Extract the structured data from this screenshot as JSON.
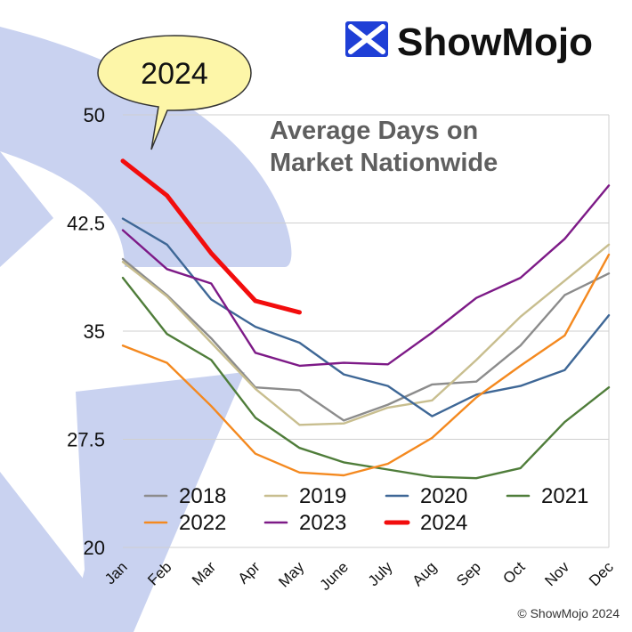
{
  "brand": {
    "name": "ShowMojo",
    "copyright": "© ShowMojo 2024"
  },
  "callout": {
    "text": "2024"
  },
  "colors": {
    "decor": "#c9d2f0",
    "grid": "#cfcfcf",
    "callout_fill": "#fdf6a8",
    "logo_blue": "#1f3fd6"
  },
  "chart_data": {
    "type": "line",
    "title": "Average Days on Market Nationwide",
    "title_lines": [
      "Average Days on",
      "Market Nationwide"
    ],
    "categories": [
      "Jan",
      "Feb",
      "Mar",
      "Apr",
      "May",
      "June",
      "July",
      "Aug",
      "Sep",
      "Oct",
      "Nov",
      "Dec"
    ],
    "ylim": [
      20,
      50
    ],
    "yticks": [
      20,
      27.5,
      35,
      42.5,
      50
    ],
    "ytick_labels": [
      "20",
      "27.5",
      "35",
      "42.5",
      "50"
    ],
    "grid": true,
    "legend_position": "bottom-inside",
    "series": [
      {
        "name": "2018",
        "color": "#8c8c8c",
        "values": [
          40.0,
          37.5,
          34.5,
          31.1,
          30.9,
          28.8,
          29.9,
          31.3,
          31.5,
          34.0,
          37.5,
          39.0
        ]
      },
      {
        "name": "2019",
        "color": "#c8be8f",
        "values": [
          39.8,
          37.4,
          34.2,
          31.0,
          28.5,
          28.6,
          29.7,
          30.2,
          33.0,
          36.0,
          38.5,
          41.0
        ]
      },
      {
        "name": "2020",
        "color": "#3e6796",
        "values": [
          42.8,
          41.0,
          37.2,
          35.3,
          34.2,
          32.0,
          31.2,
          29.1,
          30.6,
          31.2,
          32.3,
          36.1
        ]
      },
      {
        "name": "2021",
        "color": "#4f7d3a",
        "values": [
          38.7,
          34.8,
          33.0,
          29.0,
          26.9,
          25.9,
          25.4,
          24.9,
          24.8,
          25.5,
          28.7,
          31.1
        ]
      },
      {
        "name": "2022",
        "color": "#f4891f",
        "values": [
          34.0,
          32.8,
          29.8,
          26.5,
          25.2,
          25.0,
          25.8,
          27.6,
          30.4,
          32.6,
          34.7,
          40.3
        ]
      },
      {
        "name": "2023",
        "color": "#7d1a87",
        "values": [
          42.0,
          39.3,
          38.3,
          33.5,
          32.6,
          32.8,
          32.7,
          34.9,
          37.3,
          38.7,
          41.4,
          45.1
        ]
      },
      {
        "name": "2024",
        "color": "#f20d0d",
        "values": [
          46.8,
          44.4,
          40.4,
          37.1,
          36.3,
          null,
          null,
          null,
          null,
          null,
          null,
          null
        ]
      }
    ]
  }
}
